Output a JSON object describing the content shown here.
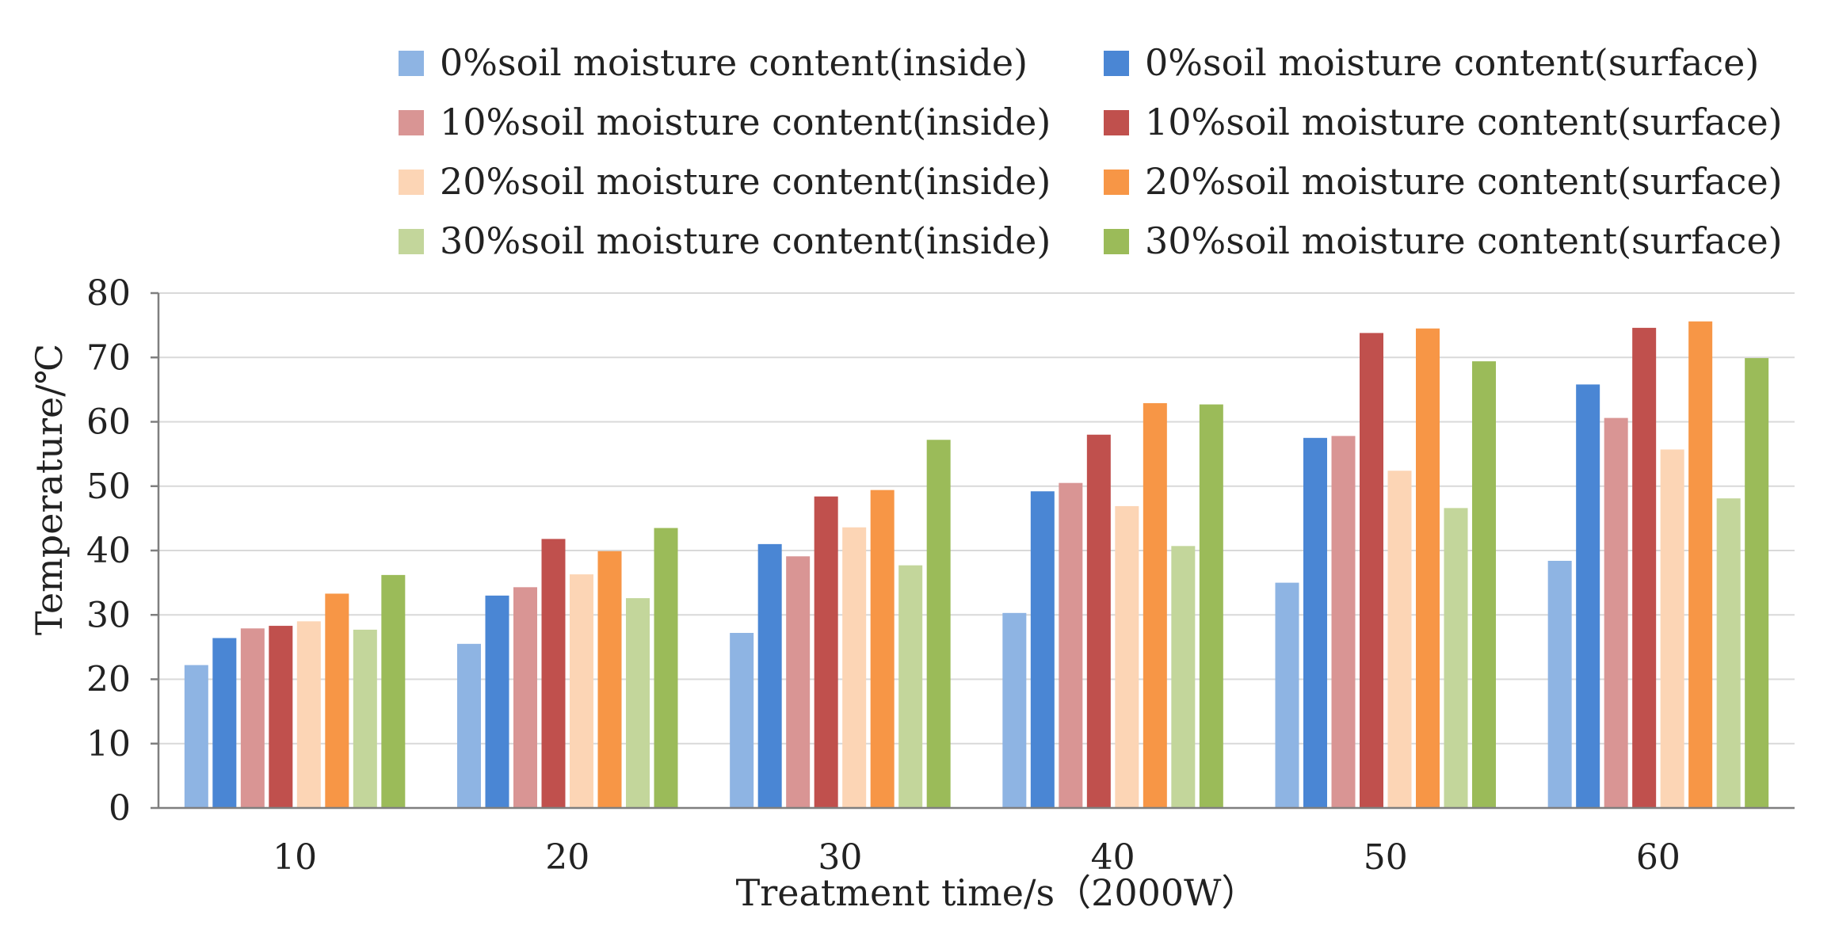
{
  "chart_data": {
    "type": "bar",
    "title": "",
    "xlabel": "Treatment time/s（2000W）",
    "ylabel": "Temperature/℃",
    "ylim": [
      0,
      80
    ],
    "yticks": [
      0,
      10,
      20,
      30,
      40,
      50,
      60,
      70,
      80
    ],
    "grid": true,
    "legend_position": "top",
    "categories": [
      "10",
      "20",
      "30",
      "40",
      "50",
      "60"
    ],
    "series": [
      {
        "name": "0%soil moisture content(inside)",
        "color": "#8EB4E3",
        "values": [
          22.2,
          25.5,
          27.2,
          30.3,
          35.0,
          38.4
        ]
      },
      {
        "name": "0%soil moisture content(surface)",
        "color": "#4A86D4",
        "values": [
          26.4,
          33.0,
          41.0,
          49.2,
          57.5,
          65.8
        ]
      },
      {
        "name": "10%soil moisture content(inside)",
        "color": "#D99594",
        "values": [
          27.9,
          34.3,
          39.1,
          50.5,
          57.8,
          60.6
        ]
      },
      {
        "name": "10%soil moisture content(surface)",
        "color": "#C0504D",
        "values": [
          28.3,
          41.8,
          48.4,
          58.0,
          73.8,
          74.6
        ]
      },
      {
        "name": "20%soil moisture content(inside)",
        "color": "#FCD5B5",
        "values": [
          29.0,
          36.3,
          43.6,
          46.9,
          52.4,
          55.7
        ]
      },
      {
        "name": "20%soil moisture content(surface)",
        "color": "#F79646",
        "values": [
          33.3,
          39.9,
          49.4,
          62.9,
          74.5,
          75.6
        ]
      },
      {
        "name": "30%soil moisture content(inside)",
        "color": "#C3D69B",
        "values": [
          27.7,
          32.6,
          37.7,
          40.7,
          46.6,
          48.1
        ]
      },
      {
        "name": "30%soil moisture content(surface)",
        "color": "#9BBB59",
        "values": [
          36.2,
          43.5,
          57.2,
          62.7,
          69.4,
          69.9
        ]
      }
    ]
  }
}
